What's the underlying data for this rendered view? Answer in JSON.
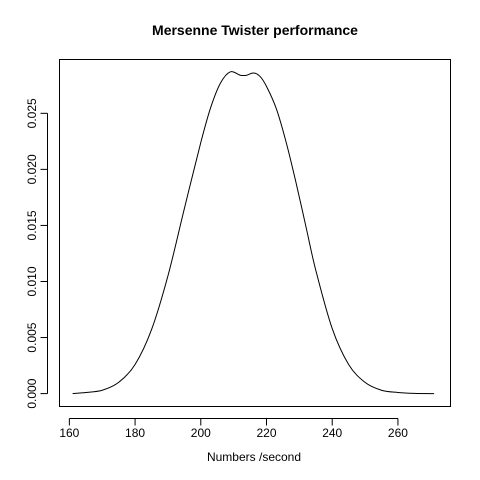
{
  "chart_data": {
    "type": "line",
    "title": "Mersenne Twister performance",
    "xlabel": "Numbers /second",
    "ylabel": "",
    "xlim": [
      157,
      276
    ],
    "ylim": [
      -0.00115,
      0.0298
    ],
    "x_ticks": [
      160,
      180,
      200,
      220,
      240,
      260
    ],
    "x_tick_labels": [
      "160",
      "180",
      "200",
      "220",
      "240",
      "260"
    ],
    "y_ticks": [
      0.0,
      0.005,
      0.01,
      0.015,
      0.02,
      0.025
    ],
    "y_tick_labels": [
      "0.000",
      "0.005",
      "0.010",
      "0.015",
      "0.020",
      "0.025"
    ],
    "grid": false,
    "series": [
      {
        "x": [
          161,
          165,
          170,
          175,
          180,
          185,
          190,
          195,
          200,
          203,
          206,
          209,
          212,
          214,
          216,
          218,
          220,
          223,
          226,
          229,
          232,
          235,
          240,
          245,
          250,
          255,
          260,
          265,
          271
        ],
        "y": [
          0.0,
          0.0001,
          0.0003,
          0.001,
          0.0026,
          0.0057,
          0.0105,
          0.0165,
          0.0224,
          0.0255,
          0.0277,
          0.0287,
          0.0284,
          0.0284,
          0.0286,
          0.0283,
          0.0274,
          0.0254,
          0.0224,
          0.0188,
          0.0149,
          0.011,
          0.0058,
          0.0026,
          0.001,
          0.0003,
          0.0001,
          2e-05,
          0.0
        ]
      }
    ]
  }
}
